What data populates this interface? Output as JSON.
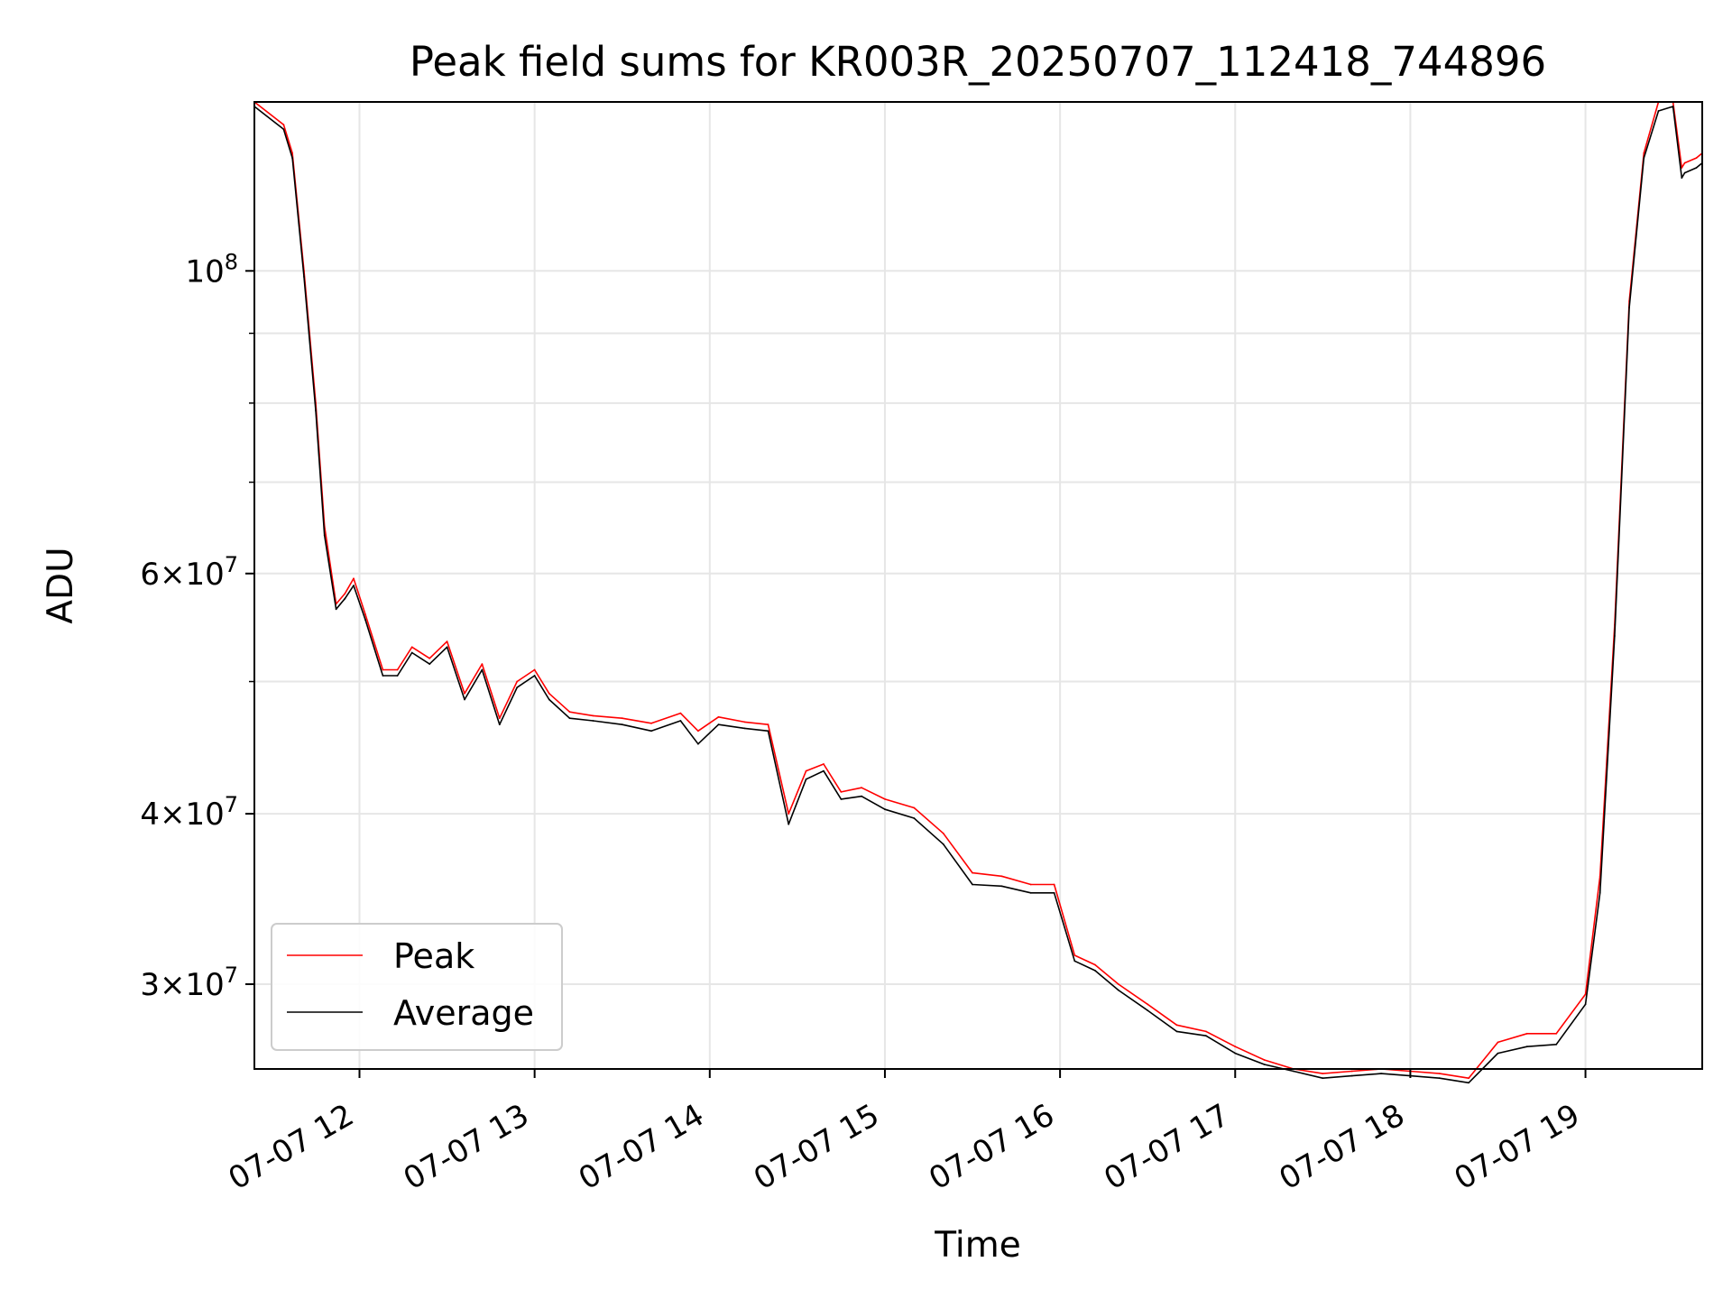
{
  "chart_data": {
    "type": "line",
    "title": "Peak field sums for KR003R_20250707_112418_744896",
    "xlabel": "Time",
    "ylabel": "ADU",
    "y_scale": "log",
    "xlim": [
      "2025-07-07 11:24",
      "2025-07-07 19:40"
    ],
    "ylim": [
      26000000,
      133000000
    ],
    "grid": true,
    "legend_position": "lower left",
    "x_tick_values": [
      "2025-07-07 12:00",
      "2025-07-07 13:00",
      "2025-07-07 14:00",
      "2025-07-07 15:00",
      "2025-07-07 16:00",
      "2025-07-07 17:00",
      "2025-07-07 18:00",
      "2025-07-07 19:00"
    ],
    "x_tick_labels": [
      "07-07 12",
      "07-07 13",
      "07-07 14",
      "07-07 15",
      "07-07 16",
      "07-07 17",
      "07-07 18",
      "07-07 19"
    ],
    "y_ticks_major": [
      {
        "value": 30000000,
        "coef": "3",
        "exp": "7"
      },
      {
        "value": 40000000,
        "coef": "4",
        "exp": "7"
      },
      {
        "value": 60000000,
        "coef": "6",
        "exp": "7"
      },
      {
        "value": 100000000,
        "coef": "",
        "exp": "8"
      }
    ],
    "y_ticks_minor": [
      50000000,
      70000000,
      80000000,
      90000000
    ],
    "series": [
      {
        "name": "Peak",
        "color": "#ff0000",
        "x": [
          "2025-07-07 11:24",
          "2025-07-07 11:34",
          "2025-07-07 11:37",
          "2025-07-07 11:41",
          "2025-07-07 11:45",
          "2025-07-07 11:48",
          "2025-07-07 11:52",
          "2025-07-07 11:55",
          "2025-07-07 11:58",
          "2025-07-07 12:02",
          "2025-07-07 12:08",
          "2025-07-07 12:13",
          "2025-07-07 12:18",
          "2025-07-07 12:24",
          "2025-07-07 12:30",
          "2025-07-07 12:36",
          "2025-07-07 12:42",
          "2025-07-07 12:48",
          "2025-07-07 12:54",
          "2025-07-07 13:00",
          "2025-07-07 13:05",
          "2025-07-07 13:12",
          "2025-07-07 13:20",
          "2025-07-07 13:30",
          "2025-07-07 13:40",
          "2025-07-07 13:50",
          "2025-07-07 13:56",
          "2025-07-07 14:03",
          "2025-07-07 14:12",
          "2025-07-07 14:20",
          "2025-07-07 14:27",
          "2025-07-07 14:33",
          "2025-07-07 14:39",
          "2025-07-07 14:45",
          "2025-07-07 14:52",
          "2025-07-07 15:00",
          "2025-07-07 15:10",
          "2025-07-07 15:20",
          "2025-07-07 15:30",
          "2025-07-07 15:40",
          "2025-07-07 15:50",
          "2025-07-07 15:58",
          "2025-07-07 16:05",
          "2025-07-07 16:12",
          "2025-07-07 16:20",
          "2025-07-07 16:30",
          "2025-07-07 16:40",
          "2025-07-07 16:50",
          "2025-07-07 17:00",
          "2025-07-07 17:10",
          "2025-07-07 17:20",
          "2025-07-07 17:30",
          "2025-07-07 17:40",
          "2025-07-07 17:50",
          "2025-07-07 18:00",
          "2025-07-07 18:10",
          "2025-07-07 18:20",
          "2025-07-07 18:30",
          "2025-07-07 18:40",
          "2025-07-07 18:50",
          "2025-07-07 19:00",
          "2025-07-07 19:05",
          "2025-07-07 19:10",
          "2025-07-07 19:15",
          "2025-07-07 19:20",
          "2025-07-07 19:25",
          "2025-07-07 19:30",
          "2025-07-07 19:33",
          "2025-07-07 19:34",
          "2025-07-07 19:38",
          "2025-07-07 19:40"
        ],
        "values": [
          133000000,
          128000000,
          122000000,
          100000000,
          80000000,
          65000000,
          57000000,
          58000000,
          59500000,
          56000000,
          51000000,
          51000000,
          53000000,
          52000000,
          53500000,
          49000000,
          51500000,
          47000000,
          50000000,
          51000000,
          49000000,
          47500000,
          47200000,
          47000000,
          46600000,
          47400000,
          46000000,
          47100000,
          46700000,
          46500000,
          40000000,
          43000000,
          43500000,
          41500000,
          41800000,
          41000000,
          40400000,
          38700000,
          36200000,
          36000000,
          35500000,
          35500000,
          31500000,
          31000000,
          30000000,
          29000000,
          28000000,
          27700000,
          27000000,
          26400000,
          26000000,
          25800000,
          25900000,
          26000000,
          25900000,
          25800000,
          25600000,
          27200000,
          27600000,
          27600000,
          29500000,
          36000000,
          55000000,
          95000000,
          122000000,
          133000000,
          133000000,
          119000000,
          120000000,
          121000000,
          122000000
        ]
      },
      {
        "name": "Average",
        "color": "#000000",
        "x": [
          "2025-07-07 11:24",
          "2025-07-07 11:34",
          "2025-07-07 11:37",
          "2025-07-07 11:41",
          "2025-07-07 11:45",
          "2025-07-07 11:48",
          "2025-07-07 11:52",
          "2025-07-07 11:55",
          "2025-07-07 11:58",
          "2025-07-07 12:02",
          "2025-07-07 12:08",
          "2025-07-07 12:13",
          "2025-07-07 12:18",
          "2025-07-07 12:24",
          "2025-07-07 12:30",
          "2025-07-07 12:36",
          "2025-07-07 12:42",
          "2025-07-07 12:48",
          "2025-07-07 12:54",
          "2025-07-07 13:00",
          "2025-07-07 13:05",
          "2025-07-07 13:12",
          "2025-07-07 13:20",
          "2025-07-07 13:30",
          "2025-07-07 13:40",
          "2025-07-07 13:50",
          "2025-07-07 13:56",
          "2025-07-07 14:03",
          "2025-07-07 14:12",
          "2025-07-07 14:20",
          "2025-07-07 14:27",
          "2025-07-07 14:33",
          "2025-07-07 14:39",
          "2025-07-07 14:45",
          "2025-07-07 14:52",
          "2025-07-07 15:00",
          "2025-07-07 15:10",
          "2025-07-07 15:20",
          "2025-07-07 15:30",
          "2025-07-07 15:40",
          "2025-07-07 15:50",
          "2025-07-07 15:58",
          "2025-07-07 16:05",
          "2025-07-07 16:12",
          "2025-07-07 16:20",
          "2025-07-07 16:30",
          "2025-07-07 16:40",
          "2025-07-07 16:50",
          "2025-07-07 17:00",
          "2025-07-07 17:10",
          "2025-07-07 17:20",
          "2025-07-07 17:30",
          "2025-07-07 17:40",
          "2025-07-07 17:50",
          "2025-07-07 18:00",
          "2025-07-07 18:10",
          "2025-07-07 18:20",
          "2025-07-07 18:30",
          "2025-07-07 18:40",
          "2025-07-07 18:50",
          "2025-07-07 19:00",
          "2025-07-07 19:05",
          "2025-07-07 19:10",
          "2025-07-07 19:15",
          "2025-07-07 19:20",
          "2025-07-07 19:25",
          "2025-07-07 19:30",
          "2025-07-07 19:33",
          "2025-07-07 19:34",
          "2025-07-07 19:38",
          "2025-07-07 19:40"
        ],
        "values": [
          132000000,
          127000000,
          121000000,
          99000000,
          79000000,
          64000000,
          56500000,
          57500000,
          58800000,
          55500000,
          50500000,
          50500000,
          52500000,
          51500000,
          53000000,
          48500000,
          51000000,
          46500000,
          49500000,
          50500000,
          48500000,
          47000000,
          46800000,
          46500000,
          46000000,
          46800000,
          45000000,
          46500000,
          46200000,
          46000000,
          39300000,
          42400000,
          43000000,
          41000000,
          41200000,
          40300000,
          39700000,
          38000000,
          35500000,
          35400000,
          35000000,
          35000000,
          31200000,
          30700000,
          29700000,
          28700000,
          27700000,
          27500000,
          26700000,
          26200000,
          25900000,
          25600000,
          25700000,
          25800000,
          25700000,
          25600000,
          25400000,
          26700000,
          27000000,
          27100000,
          29000000,
          35000000,
          54000000,
          94000000,
          121000000,
          131000000,
          132000000,
          117000000,
          118000000,
          119000000,
          120000000
        ]
      }
    ]
  }
}
